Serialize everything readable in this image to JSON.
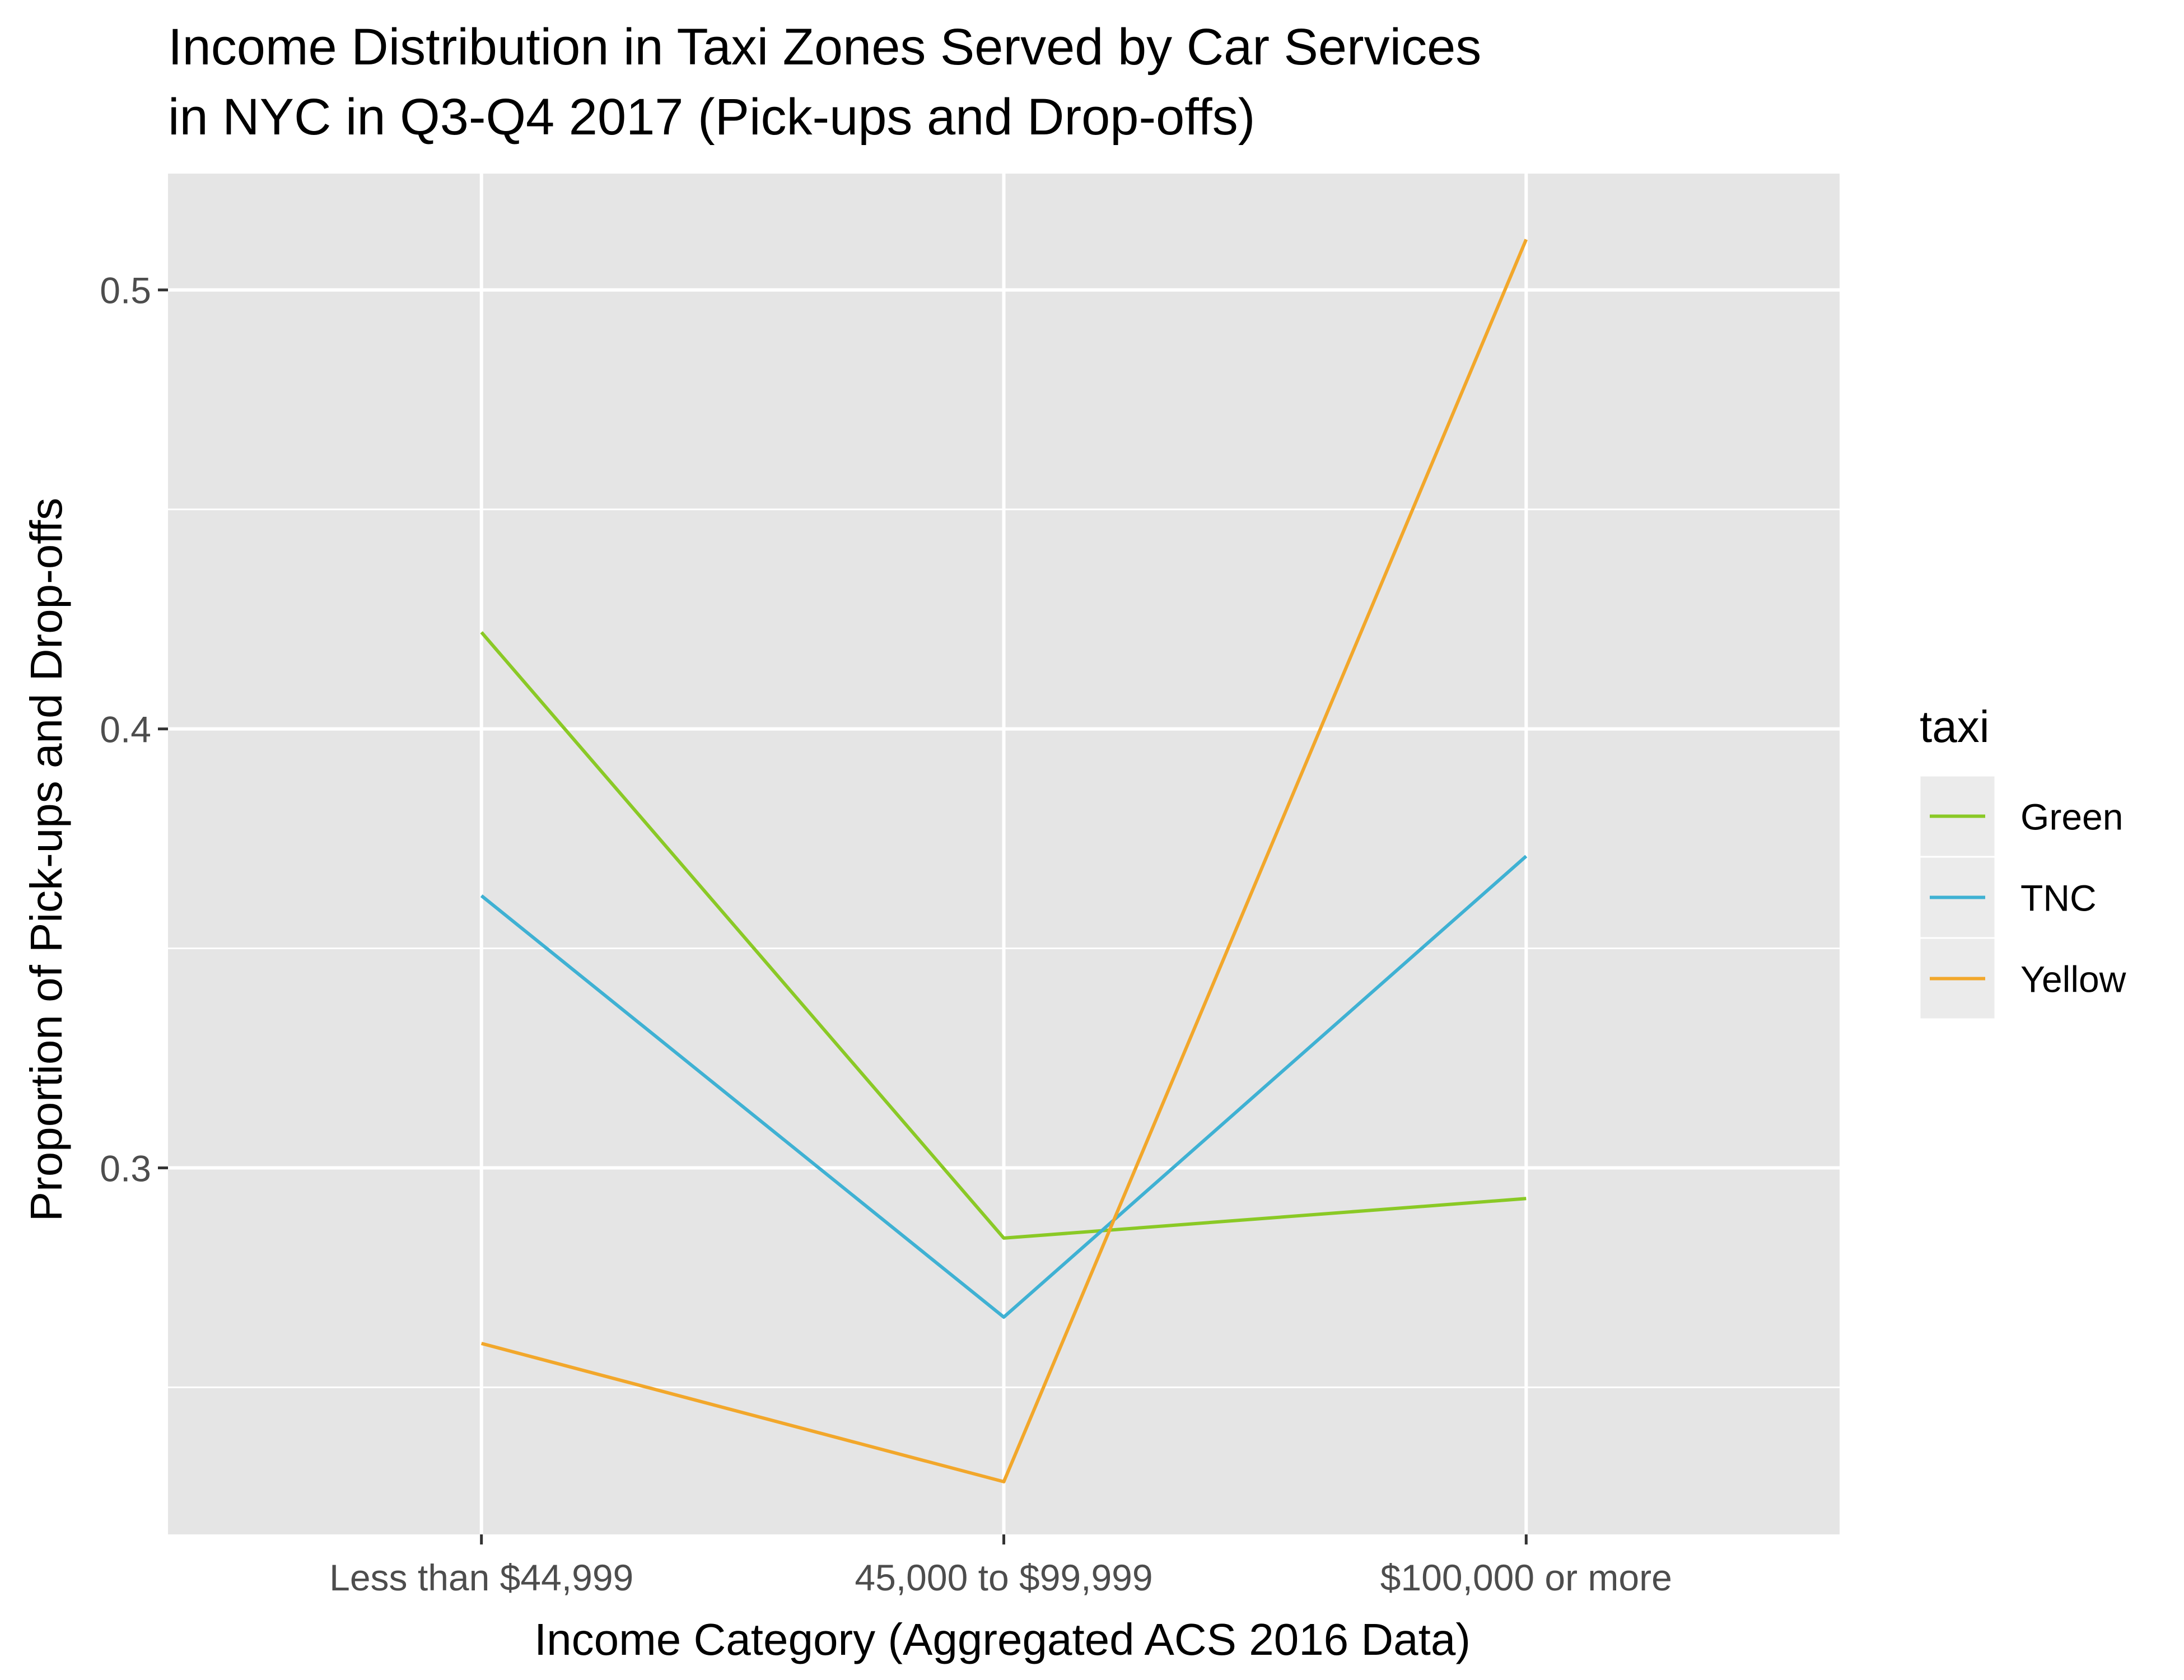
{
  "chart_data": {
    "type": "line",
    "title": "Income Distribution in Taxi Zones Served by Car Services",
    "subtitle": "in NYC in Q3-Q4 2017 (Pick-ups and Drop-offs)",
    "xlabel": "Income Category (Aggregated ACS 2016 Data)",
    "ylabel": "Proportion of Pick-ups and Drop-offs",
    "categories": [
      "Less than $44,999",
      "45,000 to $99,999",
      "$100,000 or more"
    ],
    "series": [
      {
        "name": "Green",
        "color": "#8ac926",
        "values": [
          0.422,
          0.284,
          0.293
        ]
      },
      {
        "name": "TNC",
        "color": "#3fb1d3",
        "values": [
          0.362,
          0.266,
          0.371
        ]
      },
      {
        "name": "Yellow",
        "color": "#f2a72b",
        "values": [
          0.26,
          0.2285,
          0.5115
        ]
      }
    ],
    "yticks": [
      0.3,
      0.4,
      0.5
    ],
    "yticklabels": [
      "0.3",
      "0.4",
      "0.5"
    ],
    "ylim": [
      0.2165,
      0.5265
    ],
    "grid": true,
    "legend": {
      "title": "taxi",
      "placement": "right"
    },
    "panel_background": "#e5e5e5",
    "grid_color": "#ffffff",
    "text_color": "#000000",
    "tick_label_color": "#4d4d4d"
  }
}
